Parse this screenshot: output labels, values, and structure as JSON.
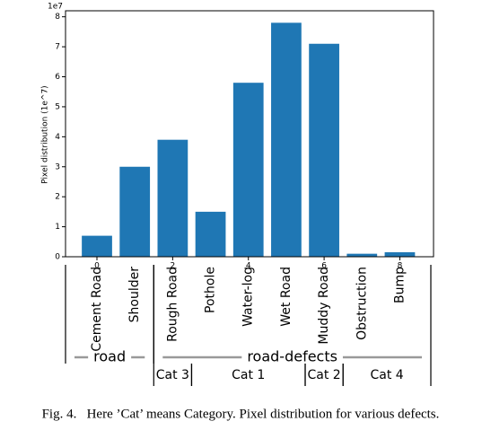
{
  "chart_data": {
    "type": "bar",
    "offset_label": "1e7",
    "ylabel": "Pixel distribution (1e^7)",
    "x": [
      0,
      1,
      2,
      3,
      4,
      5,
      6,
      7,
      8
    ],
    "categories": [
      "Cement Road",
      "Shoulder",
      "Rough Road",
      "Pothole",
      "Water-log",
      "Wet Road",
      "Muddy Road",
      "Obstruction",
      "Bump"
    ],
    "values": [
      0.7,
      3.0,
      3.9,
      1.5,
      5.8,
      7.8,
      7.1,
      0.1,
      0.15
    ],
    "color": "#1f77b4",
    "xlim": [
      -0.83,
      8.89
    ],
    "xticks": [
      0,
      2,
      4,
      6,
      8
    ],
    "ylim": [
      0,
      8.2
    ],
    "yticks": [
      0,
      1,
      2,
      3,
      4,
      5,
      6,
      7,
      8
    ],
    "groups": [
      {
        "label": "road",
        "start": 0,
        "end": 1
      },
      {
        "label": "road-defects",
        "start": 2,
        "end": 8
      }
    ],
    "subgroups": [
      {
        "label": "Cat 3",
        "start": 2,
        "end": 2
      },
      {
        "label": "Cat 1",
        "start": 3,
        "end": 5
      },
      {
        "label": "Cat 2",
        "start": 6,
        "end": 6
      },
      {
        "label": "Cat 4",
        "start": 7,
        "end": 8
      }
    ]
  },
  "caption": "Fig. 4.   Here ’Cat’ means Category. Pixel distribution for various defects."
}
